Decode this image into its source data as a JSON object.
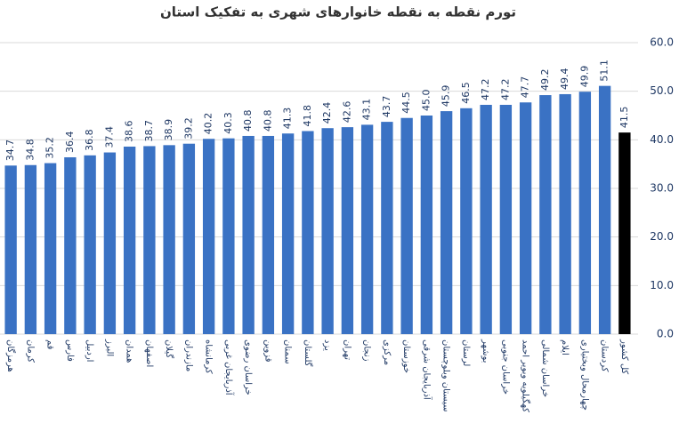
{
  "chart_data": {
    "type": "bar",
    "title": "تورم نقطه به نقطه خانوارهای شهری به تفکیک استان",
    "categories": [
      "هرمزگان",
      "کرمان",
      "قم",
      "فارس",
      "اردبیل",
      "البرز",
      "همدان",
      "اصفهان",
      "گیلان",
      "مازندران",
      "کرمانشاه",
      "آذربایجان غربی",
      "خراسان رضوی",
      "قزوین",
      "سمنان",
      "گلستان",
      "یزد",
      "تهران",
      "زنجان",
      "مرکزی",
      "خوزستان",
      "آذربایجان شرقی",
      "سیستان وبلوچستان",
      "لرستان",
      "بوشهر",
      "خراسان جنوبی",
      "کهگیلویه وبویر احمد",
      "خراسان شمالی",
      "ایلام",
      "چهارمحال وبختیاری",
      "کردستان",
      "کل کشور"
    ],
    "values": [
      34.7,
      34.8,
      35.2,
      36.4,
      36.8,
      37.4,
      38.6,
      38.7,
      38.9,
      39.2,
      40.2,
      40.3,
      40.8,
      40.8,
      41.3,
      41.8,
      42.4,
      42.6,
      43.1,
      43.7,
      44.5,
      45.0,
      45.9,
      46.5,
      47.2,
      47.2,
      47.7,
      49.2,
      49.4,
      49.9,
      51.1,
      41.5
    ],
    "value_labels": [
      "34.7",
      "34.8",
      "35.2",
      "36.4",
      "36.8",
      "37.4",
      "38.6",
      "38.7",
      "38.9",
      "39.2",
      "40.2",
      "40.3",
      "40.8",
      "40.8",
      "41.3",
      "41.8",
      "42.4",
      "42.6",
      "43.1",
      "43.7",
      "44.5",
      "45.0",
      "45.9",
      "46.5",
      "47.2",
      "47.2",
      "47.7",
      "49.2",
      "49.4",
      "49.9",
      "51.1",
      "41.5"
    ],
    "colors": [
      "#3a72c4",
      "#3a72c4",
      "#3a72c4",
      "#3a72c4",
      "#3a72c4",
      "#3a72c4",
      "#3a72c4",
      "#3a72c4",
      "#3a72c4",
      "#3a72c4",
      "#3a72c4",
      "#3a72c4",
      "#3a72c4",
      "#3a72c4",
      "#3a72c4",
      "#3a72c4",
      "#3a72c4",
      "#3a72c4",
      "#3a72c4",
      "#3a72c4",
      "#3a72c4",
      "#3a72c4",
      "#3a72c4",
      "#3a72c4",
      "#3a72c4",
      "#3a72c4",
      "#3a72c4",
      "#3a72c4",
      "#3a72c4",
      "#3a72c4",
      "#3a72c4",
      "#000000"
    ],
    "ylim": [
      0,
      60
    ],
    "yticks": [
      {
        "value": 0,
        "label": "0.0"
      },
      {
        "value": 10,
        "label": "10.0"
      },
      {
        "value": 20,
        "label": "20.0"
      },
      {
        "value": 30,
        "label": "30.0"
      },
      {
        "value": 40,
        "label": "40.0"
      },
      {
        "value": 50,
        "label": "50.0"
      },
      {
        "value": 60,
        "label": "60.0"
      }
    ],
    "grid": true
  }
}
